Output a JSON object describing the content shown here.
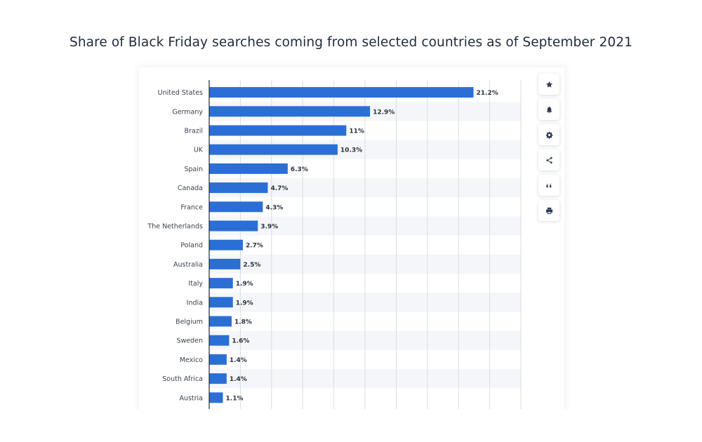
{
  "title": "Share of Black Friday searches coming from selected countries as of September 2021",
  "toolbar": {
    "buttons": [
      {
        "icon": "star-icon"
      },
      {
        "icon": "bell-icon"
      },
      {
        "icon": "gear-icon"
      },
      {
        "icon": "share-icon"
      },
      {
        "icon": "quote-icon"
      },
      {
        "icon": "print-icon"
      }
    ]
  },
  "colors": {
    "bar": "#2b6fd6",
    "band": "#f4f6f9",
    "grid": "#d9dde3",
    "axis": "#1b2a3a",
    "label": "#3a4350",
    "value": "#2a3440"
  },
  "chart_data": {
    "type": "bar",
    "orientation": "horizontal",
    "categories": [
      "United States",
      "Germany",
      "Brazil",
      "UK",
      "Spain",
      "Canada",
      "France",
      "The Netherlands",
      "Poland",
      "Australia",
      "Italy",
      "India",
      "Belgium",
      "Sweden",
      "Mexico",
      "South Africa",
      "Austria"
    ],
    "values": [
      21.2,
      12.9,
      11,
      10.3,
      6.3,
      4.7,
      4.3,
      3.9,
      2.7,
      2.5,
      1.9,
      1.9,
      1.8,
      1.6,
      1.4,
      1.4,
      1.1
    ],
    "value_labels": [
      "21.2%",
      "12.9%",
      "11%",
      "10.3%",
      "6.3%",
      "4.7%",
      "4.3%",
      "3.9%",
      "2.7%",
      "2.5%",
      "1.9%",
      "1.9%",
      "1.8%",
      "1.6%",
      "1.4%",
      "1.4%",
      "1.1%"
    ],
    "xlim": [
      0,
      25
    ],
    "grid": true,
    "unit": "%"
  }
}
